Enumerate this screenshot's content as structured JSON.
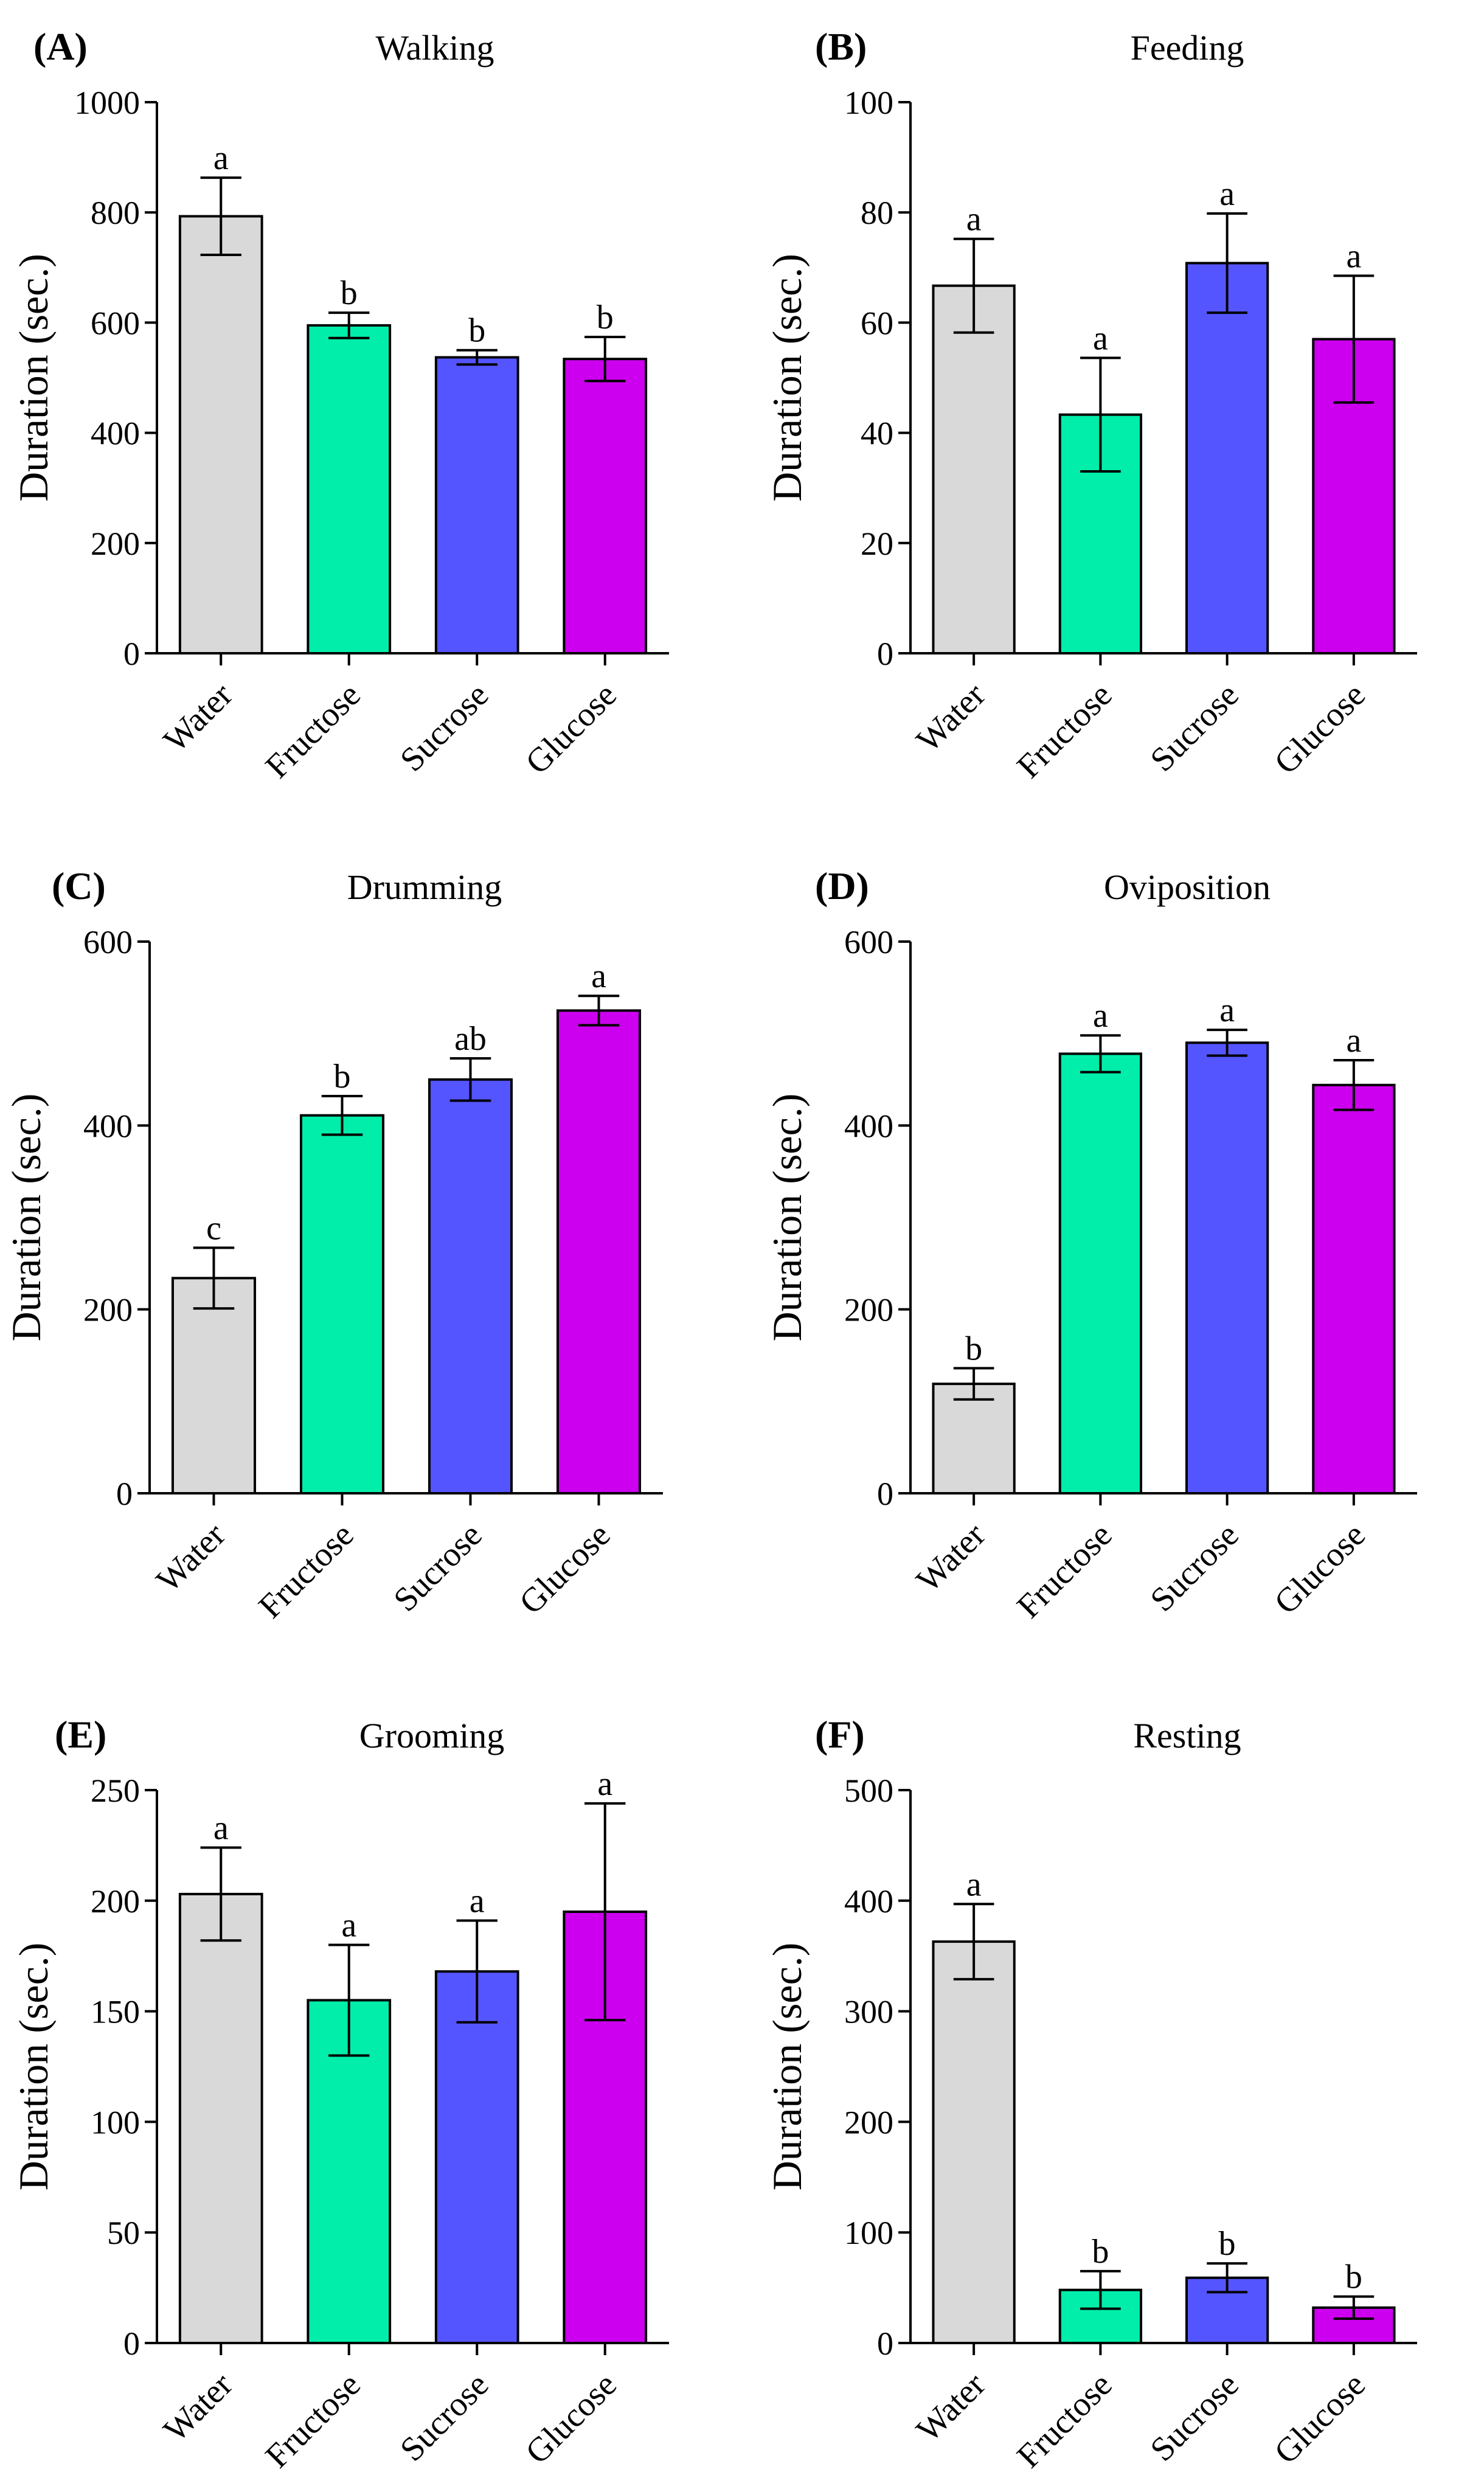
{
  "figure": {
    "colors": {
      "Water": "#d9d9d9",
      "Fructose": "#00eeaa",
      "Sucrose": "#5555ff",
      "Glucose": "#cc00ee"
    }
  },
  "chart_data": [
    {
      "panel": "(A)",
      "type": "bar",
      "title": "Walking",
      "xlabel": "",
      "ylabel": "Duration (sec.)",
      "ylim": [
        0,
        1000
      ],
      "yticks": [
        0,
        200,
        400,
        600,
        800,
        1000
      ],
      "categories": [
        "Water",
        "Fructose",
        "Sucrose",
        "Glucose"
      ],
      "values": [
        793,
        595,
        537,
        534
      ],
      "errors": [
        70,
        23,
        13,
        40
      ],
      "letters": [
        "a",
        "b",
        "b",
        "b"
      ]
    },
    {
      "panel": "(B)",
      "type": "bar",
      "title": "Feeding",
      "xlabel": "",
      "ylabel": "Duration (sec.)",
      "ylim": [
        0,
        100
      ],
      "yticks": [
        0,
        20,
        40,
        60,
        80,
        100
      ],
      "categories": [
        "Water",
        "Fructose",
        "Sucrose",
        "Glucose"
      ],
      "values": [
        66.7,
        43.3,
        70.8,
        57.0
      ],
      "errors": [
        8.5,
        10.3,
        9.0,
        11.5
      ],
      "letters": [
        "a",
        "a",
        "a",
        "a"
      ]
    },
    {
      "panel": "(C)",
      "type": "bar",
      "title": "Drumming",
      "xlabel": "",
      "ylabel": "Duration (sec.)",
      "ylim": [
        0,
        600
      ],
      "yticks": [
        0,
        200,
        400,
        600
      ],
      "categories": [
        "Water",
        "Fructose",
        "Sucrose",
        "Glucose"
      ],
      "values": [
        234,
        411,
        450,
        525
      ],
      "errors": [
        33,
        21,
        23,
        16
      ],
      "letters": [
        "c",
        "b",
        "ab",
        "a"
      ]
    },
    {
      "panel": "(D)",
      "type": "bar",
      "title": "Oviposition",
      "xlabel": "",
      "ylabel": "Duration (sec.)",
      "ylim": [
        0,
        600
      ],
      "yticks": [
        0,
        200,
        400,
        600
      ],
      "categories": [
        "Water",
        "Fructose",
        "Sucrose",
        "Glucose"
      ],
      "values": [
        119,
        478,
        490,
        444
      ],
      "errors": [
        17,
        20,
        14,
        27
      ],
      "letters": [
        "b",
        "a",
        "a",
        "a"
      ]
    },
    {
      "panel": "(E)",
      "type": "bar",
      "title": "Grooming",
      "xlabel": "",
      "ylabel": "Duration (sec.)",
      "ylim": [
        0,
        250
      ],
      "yticks": [
        0,
        50,
        100,
        150,
        200,
        250
      ],
      "categories": [
        "Water",
        "Fructose",
        "Sucrose",
        "Glucose"
      ],
      "values": [
        203,
        155,
        168,
        195
      ],
      "errors": [
        21,
        25,
        23,
        49
      ],
      "letters": [
        "a",
        "a",
        "a",
        "a"
      ]
    },
    {
      "panel": "(F)",
      "type": "bar",
      "title": "Resting",
      "xlabel": "",
      "ylabel": "Duration (sec.)",
      "ylim": [
        0,
        500
      ],
      "yticks": [
        0,
        100,
        200,
        300,
        400,
        500
      ],
      "categories": [
        "Water",
        "Fructose",
        "Sucrose",
        "Glucose"
      ],
      "values": [
        363,
        48,
        59,
        32
      ],
      "errors": [
        34,
        17,
        13,
        10
      ],
      "letters": [
        "a",
        "b",
        "b",
        "b"
      ]
    }
  ]
}
